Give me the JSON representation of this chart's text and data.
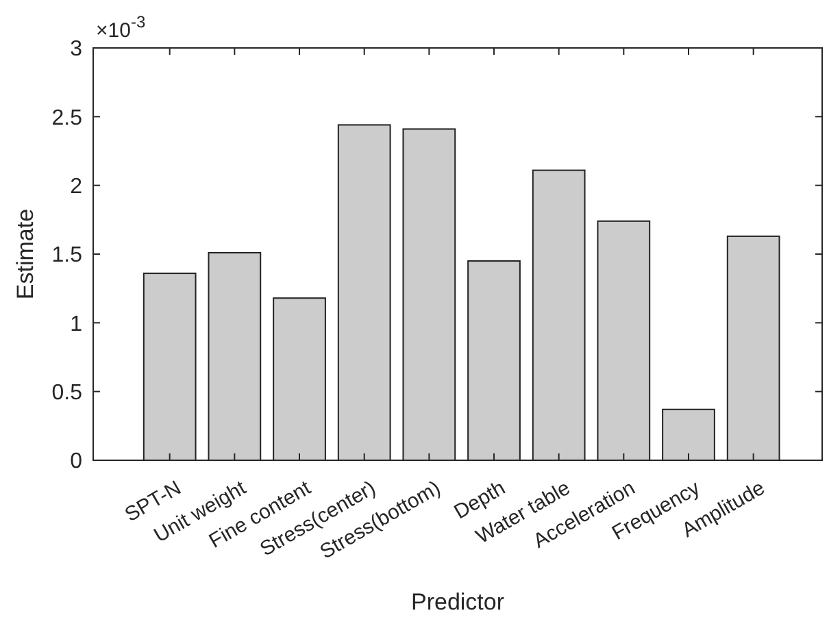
{
  "chart_data": {
    "type": "bar",
    "xlabel": "Predictor",
    "ylabel": "Estimate",
    "categories": [
      "SPT-N",
      "Unit weight",
      "Fine content",
      "Stress(center)",
      "Stress(bottom)",
      "Depth",
      "Water table",
      "Acceleration",
      "Frequency",
      "Amplitude"
    ],
    "values": [
      1.36,
      1.51,
      1.18,
      2.44,
      2.41,
      1.45,
      2.11,
      1.74,
      0.37,
      1.63
    ],
    "color": "#cccccc",
    "ylim": [
      0,
      3
    ],
    "yticks": [
      0,
      0.5,
      1,
      1.5,
      2,
      2.5,
      3
    ],
    "annotations": [
      "×10$^{-3}$"
    ]
  }
}
